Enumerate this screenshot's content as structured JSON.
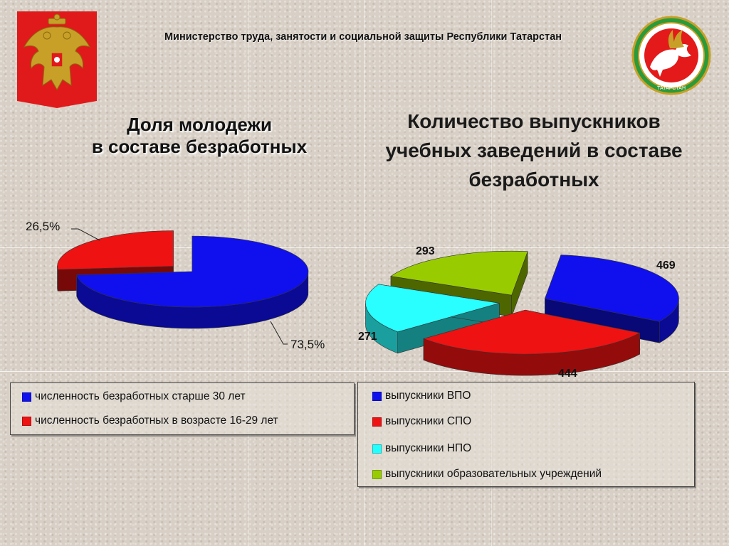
{
  "header": {
    "ministry": "Министерство  труда,  занятости и социальной защиты Республики Татарстан",
    "left_emblem": "russia-coat-of-arms-icon",
    "right_emblem": "tatarstan-coat-of-arms-icon",
    "right_emblem_text": "ТАТАРСТАН"
  },
  "titles": {
    "left_line1": "Доля молодежи",
    "left_line2": "в составе безработных",
    "right_line1": "Количество выпускников",
    "right_line2": "учебных заведений в составе",
    "right_line3": "безработных"
  },
  "chart_data": [
    {
      "type": "pie",
      "title": "Доля молодежи в составе безработных",
      "categories": [
        "численность безработных старше 30 лет",
        "численность безработных в возрасте 16-29 лет"
      ],
      "values": [
        73.5,
        26.5
      ],
      "labels": [
        "73,5%",
        "26,5%"
      ],
      "colors": [
        "#1010ee",
        "#ee1212"
      ],
      "legend": "bottom"
    },
    {
      "type": "pie",
      "title": "Количество выпускников учебных заведений в составе безработных",
      "categories": [
        "выпускники ВПО",
        "выпускники СПО",
        "выпускники НПО",
        "выпускники образовательных учреждений"
      ],
      "values": [
        469,
        444,
        271,
        293
      ],
      "labels": [
        "469",
        "444",
        "271",
        "293"
      ],
      "colors": [
        "#1010ee",
        "#ee1212",
        "#22ffff",
        "#aacc00"
      ],
      "legend": "bottom"
    }
  ],
  "legend_left": [
    {
      "label": "численность безработных старше 30 лет",
      "color": "#1010ee"
    },
    {
      "label": "численность безработных в возрасте 16-29 лет",
      "color": "#ee1212"
    }
  ],
  "legend_right": [
    {
      "label": "выпускники ВПО",
      "color": "#1010ee"
    },
    {
      "label": "выпускники СПО",
      "color": "#ee1212"
    },
    {
      "label": "выпускники НПО",
      "color": "#22ffff"
    },
    {
      "label": "выпускники образовательных учреждений",
      "color": "#99cc00"
    }
  ]
}
